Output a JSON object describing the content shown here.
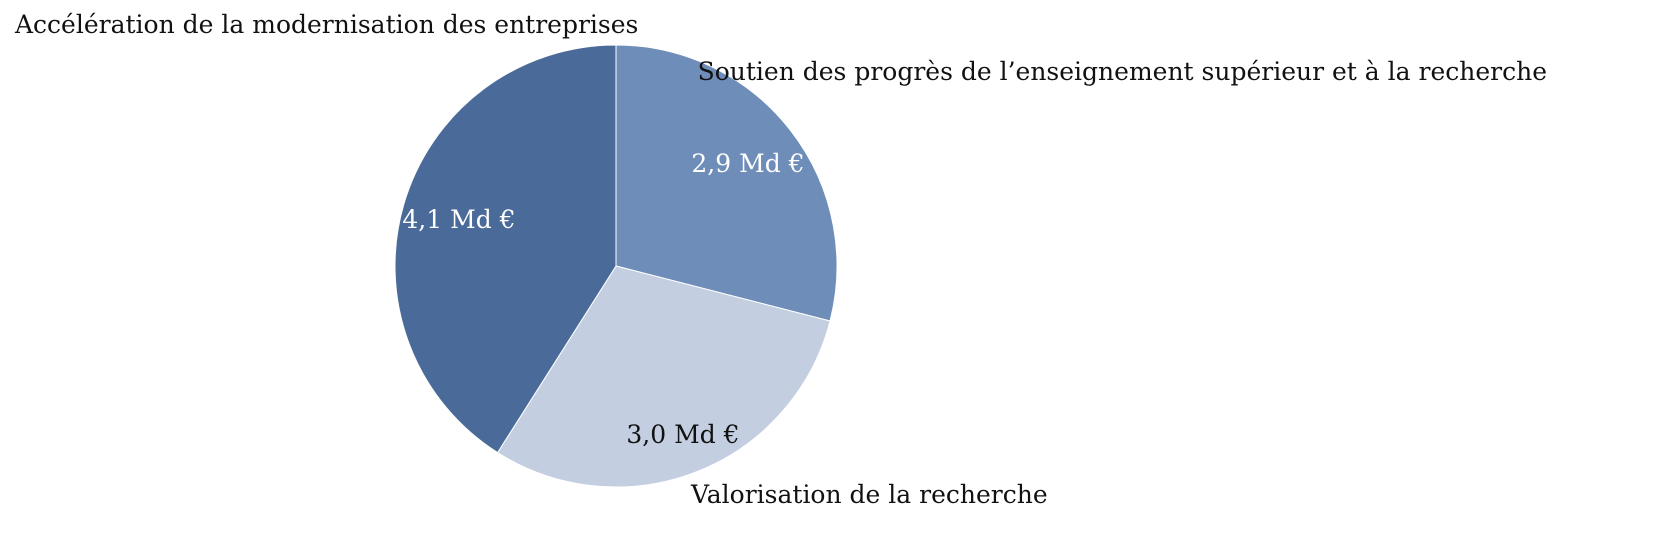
{
  "chart_data": {
    "type": "pie",
    "start_angle": "top",
    "direction": "clockwise",
    "slices": [
      {
        "label": "Soutien des progrès de l’enseignement supérieur et à la recherche",
        "value": 2.9,
        "value_label": "2,9 Md €",
        "color": "#6E8DB9",
        "value_label_color": "#ffffff"
      },
      {
        "label": "Valorisation de la recherche",
        "value": 3.0,
        "value_label": "3,0 Md €",
        "color": "#C3CEE1",
        "value_label_color": "#111111"
      },
      {
        "label": "Accélération de la modernisation des entreprises",
        "value": 4.1,
        "value_label": "4,1 Md €",
        "color": "#4A6B9A",
        "value_label_color": "#ffffff"
      }
    ]
  }
}
